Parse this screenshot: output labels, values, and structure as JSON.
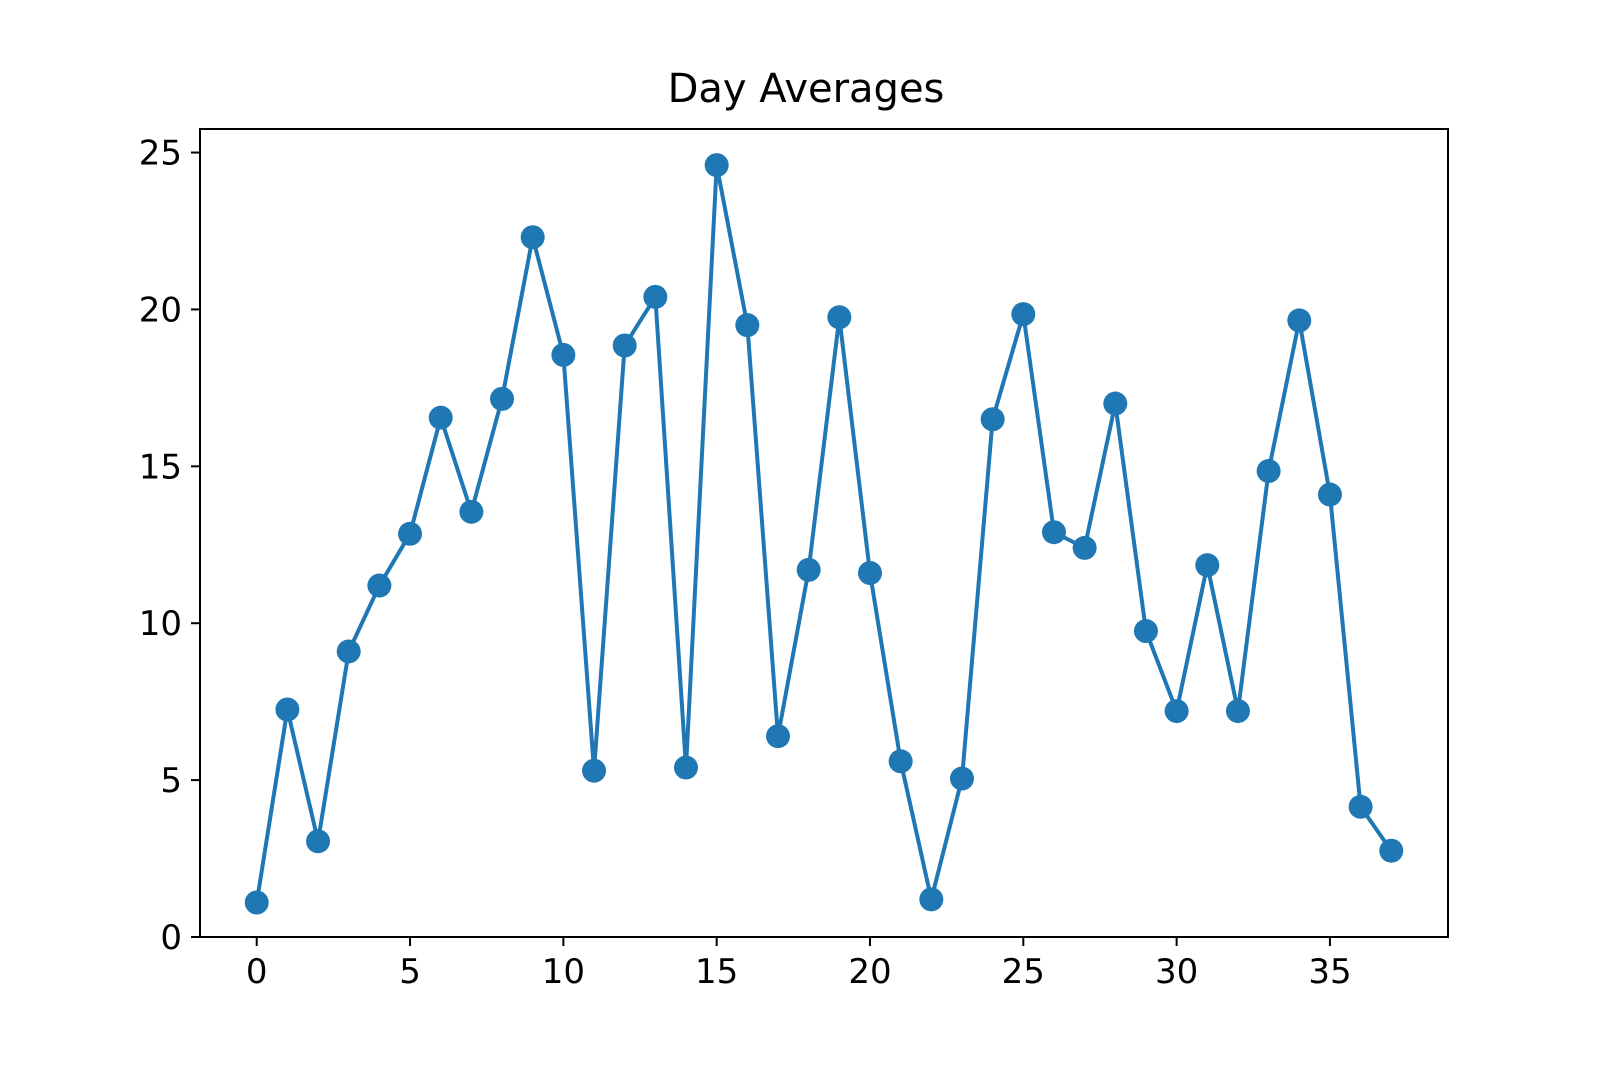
{
  "chart_data": {
    "type": "line",
    "title": "Day Averages",
    "xlabel": "",
    "ylabel": "",
    "xlim": [
      -1.85,
      38.85
    ],
    "ylim": [
      0,
      25.75
    ],
    "xticks": [
      0,
      5,
      10,
      15,
      20,
      25,
      30,
      35
    ],
    "yticks": [
      0,
      5,
      10,
      15,
      20,
      25
    ],
    "grid": false,
    "legend": "none",
    "marker": "circle",
    "color": "#1f77b4",
    "series": [
      {
        "x": [
          0,
          1,
          2,
          3,
          4,
          5,
          6,
          7,
          8,
          9,
          10,
          11,
          12,
          13,
          14,
          15,
          16,
          17,
          18,
          19,
          20,
          21,
          22,
          23,
          24,
          25,
          26,
          27,
          28,
          29,
          30,
          31,
          32,
          33,
          34,
          35,
          36,
          37
        ],
        "values": [
          1.1,
          7.25,
          3.05,
          9.1,
          11.2,
          12.85,
          16.55,
          13.55,
          17.15,
          22.3,
          18.55,
          5.3,
          18.85,
          20.4,
          5.4,
          24.6,
          19.5,
          6.4,
          11.7,
          19.75,
          11.6,
          5.6,
          1.2,
          5.05,
          16.5,
          19.85,
          12.9,
          12.4,
          17.0,
          9.75,
          7.2,
          11.85,
          7.2,
          14.85,
          19.65,
          14.1,
          4.15,
          2.75
        ]
      }
    ]
  }
}
